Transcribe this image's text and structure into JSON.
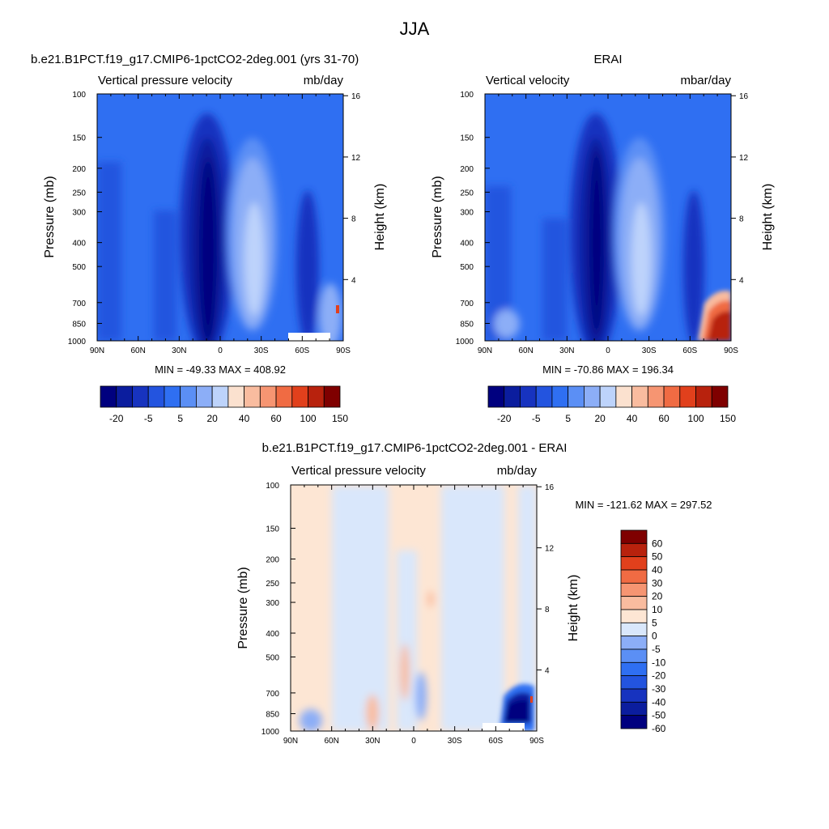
{
  "figure_title": "JJA",
  "colors": {
    "seq14": [
      "#00007f",
      "#0b1d9e",
      "#1733bf",
      "#2354df",
      "#2f6ff2",
      "#5b8ff5",
      "#8caef7",
      "#bdd3fb",
      "#fbe1cf",
      "#f9bc9f",
      "#f69572",
      "#f06b43",
      "#e1401c",
      "#b8220d",
      "#7f0000"
    ],
    "diff14": [
      "#00007f",
      "#0b1d9e",
      "#1733bf",
      "#2354df",
      "#2f6ff2",
      "#5b8ff5",
      "#8caef7",
      "#d9e7fb",
      "#fde6d4",
      "#f9bc9f",
      "#f69572",
      "#f06b43",
      "#e1401c",
      "#b8220d",
      "#7f0000"
    ]
  },
  "chart_data": [
    {
      "type": "heatmap",
      "title": "b.e21.B1PCT.f19_g17.CMIP6-1pctCO2-2deg.001 (yrs 31-70)",
      "left_subtitle": "Vertical pressure velocity",
      "right_subtitle": "mb/day",
      "ylabel": "Pressure (mb)",
      "ylabel_right": "Height (km)",
      "x_ticks": [
        "90N",
        "60N",
        "30N",
        "0",
        "30S",
        "60S",
        "90S"
      ],
      "y_ticks": [
        "100",
        "150",
        "200",
        "250",
        "300",
        "400",
        "500",
        "700",
        "850",
        "1000"
      ],
      "y_ticks_right": [
        "16",
        "12",
        "8",
        "4"
      ],
      "min_max_text": "MIN = -49.33  MAX = 408.92",
      "min": -49.33,
      "max": 408.92,
      "colorbar_labels": [
        "-20",
        "-5",
        "5",
        "20",
        "40",
        "60",
        "100",
        "150"
      ],
      "colorbar_orientation": "horizontal"
    },
    {
      "type": "heatmap",
      "title": "ERAI",
      "left_subtitle": "Vertical velocity",
      "right_subtitle": "mbar/day",
      "ylabel": "Pressure (mb)",
      "ylabel_right": "Height (km)",
      "x_ticks": [
        "90N",
        "60N",
        "30N",
        "0",
        "30S",
        "60S",
        "90S"
      ],
      "y_ticks": [
        "100",
        "150",
        "200",
        "250",
        "300",
        "400",
        "500",
        "700",
        "850",
        "1000"
      ],
      "y_ticks_right": [
        "16",
        "12",
        "8",
        "4"
      ],
      "min_max_text": "MIN = -70.86  MAX = 196.34",
      "min": -70.86,
      "max": 196.34,
      "colorbar_labels": [
        "-20",
        "-5",
        "5",
        "20",
        "40",
        "60",
        "100",
        "150"
      ],
      "colorbar_orientation": "horizontal"
    },
    {
      "type": "heatmap",
      "title": "b.e21.B1PCT.f19_g17.CMIP6-1pctCO2-2deg.001 - ERAI",
      "left_subtitle": "Vertical pressure velocity",
      "right_subtitle": "mb/day",
      "ylabel": "Pressure (mb)",
      "ylabel_right": "Height (km)",
      "x_ticks": [
        "90N",
        "60N",
        "30N",
        "0",
        "30S",
        "60S",
        "90S"
      ],
      "y_ticks": [
        "100",
        "150",
        "200",
        "250",
        "300",
        "400",
        "500",
        "700",
        "850",
        "1000"
      ],
      "y_ticks_right": [
        "16",
        "12",
        "8",
        "4"
      ],
      "min_max_text": "MIN = -121.62  MAX = 297.52",
      "min": -121.62,
      "max": 297.52,
      "colorbar_labels": [
        "60",
        "50",
        "40",
        "30",
        "20",
        "10",
        "5",
        "0",
        "-5",
        "-10",
        "-20",
        "-30",
        "-40",
        "-50",
        "-60"
      ],
      "colorbar_orientation": "vertical"
    }
  ]
}
